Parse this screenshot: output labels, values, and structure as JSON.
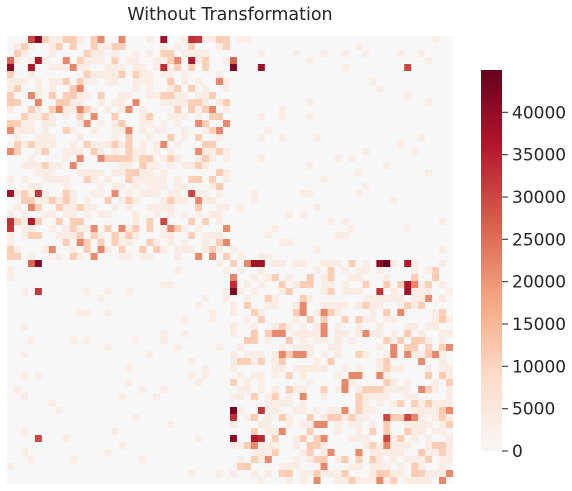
{
  "chart_data": {
    "type": "heatmap",
    "title": "Without Transformation",
    "xlabel": "",
    "ylabel": "",
    "rows": 64,
    "cols": 64,
    "value_range": [
      0,
      45000
    ],
    "colorbar": {
      "ticks": [
        0,
        5000,
        10000,
        15000,
        20000,
        25000,
        30000,
        35000,
        40000
      ],
      "tick_labels": [
        "0",
        "5000",
        "10000",
        "15000",
        "20000",
        "25000",
        "30000",
        "35000",
        "40000"
      ],
      "colormap": "RdBu_r (upper half)",
      "colors": [
        "#f7f7f7",
        "#fddbc7",
        "#f4a582",
        "#d6604d",
        "#b2182b",
        "#67001f"
      ]
    },
    "blocks": [
      {
        "name": "block-a",
        "row_range": [
          0,
          32
        ],
        "col_range": [
          0,
          32
        ],
        "typical_value": 4000
      },
      {
        "name": "block-b",
        "row_range": [
          32,
          64
        ],
        "col_range": [
          32,
          64
        ],
        "typical_value": 4000
      }
    ],
    "hot_cells": [
      {
        "row": 0,
        "col": 3,
        "value": 30000
      },
      {
        "row": 0,
        "col": 22,
        "value": 38000
      },
      {
        "row": 0,
        "col": 27,
        "value": 32000
      },
      {
        "row": 3,
        "col": 0,
        "value": 26000
      },
      {
        "row": 3,
        "col": 32,
        "value": 26000
      },
      {
        "row": 4,
        "col": 0,
        "value": 41000
      },
      {
        "row": 4,
        "col": 3,
        "value": 36000
      },
      {
        "row": 4,
        "col": 22,
        "value": 33000
      },
      {
        "row": 4,
        "col": 32,
        "value": 42000
      },
      {
        "row": 4,
        "col": 36,
        "value": 38000
      },
      {
        "row": 4,
        "col": 57,
        "value": 30000
      },
      {
        "row": 22,
        "col": 0,
        "value": 38000
      },
      {
        "row": 22,
        "col": 4,
        "value": 32000
      },
      {
        "row": 26,
        "col": 0,
        "value": 33000
      },
      {
        "row": 26,
        "col": 3,
        "value": 36000
      },
      {
        "row": 26,
        "col": 22,
        "value": 30000
      },
      {
        "row": 32,
        "col": 35,
        "value": 38000
      },
      {
        "row": 32,
        "col": 36,
        "value": 38000
      },
      {
        "row": 32,
        "col": 53,
        "value": 40000
      },
      {
        "row": 32,
        "col": 54,
        "value": 45000
      },
      {
        "row": 32,
        "col": 57,
        "value": 36000
      },
      {
        "row": 35,
        "col": 32,
        "value": 33000
      },
      {
        "row": 36,
        "col": 32,
        "value": 42000
      },
      {
        "row": 36,
        "col": 4,
        "value": 32000
      },
      {
        "row": 36,
        "col": 53,
        "value": 32000
      },
      {
        "row": 36,
        "col": 57,
        "value": 38000
      },
      {
        "row": 53,
        "col": 32,
        "value": 43000
      },
      {
        "row": 54,
        "col": 32,
        "value": 33000
      },
      {
        "row": 54,
        "col": 54,
        "value": 30000
      },
      {
        "row": 57,
        "col": 32,
        "value": 40000
      },
      {
        "row": 57,
        "col": 35,
        "value": 36000
      },
      {
        "row": 57,
        "col": 36,
        "value": 34000
      },
      {
        "row": 57,
        "col": 54,
        "value": 30000
      }
    ]
  }
}
